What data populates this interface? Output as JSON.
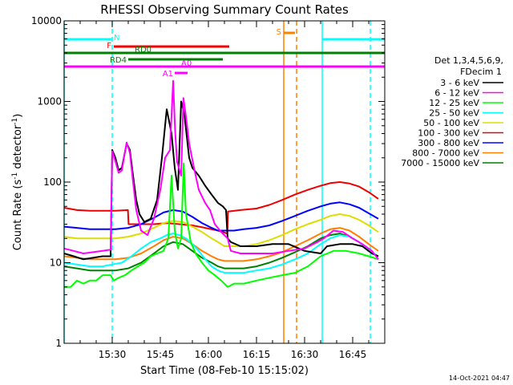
{
  "chart_data": {
    "type": "line",
    "title": "RHESSI Observing Summary Count Rates",
    "xlabel": "Start Time (08-Feb-10 15:15:02)",
    "ylabel": "Count Rate (s⁻¹ detector⁻¹)",
    "ylabel_main": "Count Rate (s",
    "ylabel_sup1": "-1",
    "ylabel_mid": " detector",
    "ylabel_sup2": "-1",
    "ylabel_end": ")",
    "y_scale": "log",
    "ylim": [
      1,
      10000
    ],
    "xlim_minutes": [
      0,
      100
    ],
    "x_ticks": [
      {
        "minute": 15,
        "label": "15:30"
      },
      {
        "minute": 30,
        "label": "15:45"
      },
      {
        "minute": 45,
        "label": "16:00"
      },
      {
        "minute": 60,
        "label": "16:15"
      },
      {
        "minute": 75,
        "label": "16:30"
      },
      {
        "minute": 90,
        "label": "16:45"
      }
    ],
    "y_ticks": [
      {
        "value": 1,
        "label": "1"
      },
      {
        "value": 10,
        "label": "10"
      },
      {
        "value": 100,
        "label": "100"
      },
      {
        "value": 1000,
        "label": "1000"
      },
      {
        "value": 10000,
        "label": "10000"
      }
    ],
    "legend": {
      "position": "right",
      "header": [
        "Det 1,3,4,5,6,9,",
        "FDecim 1"
      ],
      "entries": [
        {
          "label": "3 - 6 keV",
          "color": "#000000"
        },
        {
          "label": "6 - 12 keV",
          "color": "#ff00ff"
        },
        {
          "label": "12 - 25 keV",
          "color": "#00ff00"
        },
        {
          "label": "25 - 50 keV",
          "color": "#00ffff"
        },
        {
          "label": "50 - 100 keV",
          "color": "#dddd00"
        },
        {
          "label": "100 - 300 keV",
          "color": "#ee0000"
        },
        {
          "label": "300 - 800 keV",
          "color": "#0000ff"
        },
        {
          "label": "800 - 7000 keV",
          "color": "#ff8000"
        },
        {
          "label": "7000 - 15000 keV",
          "color": "#008000"
        }
      ]
    },
    "flag_bars": [
      {
        "label": "N",
        "color": "#00ffff",
        "segments": [
          [
            0,
            15
          ],
          [
            80.5,
            100
          ]
        ]
      },
      {
        "label": "S",
        "color": "#ff8000",
        "segments": [
          [
            68.5,
            72
          ]
        ]
      },
      {
        "label": "F",
        "color": "#ff0000",
        "segments": [
          [
            15.5,
            51.5
          ]
        ]
      },
      {
        "label": "RD0",
        "color": "#008000",
        "segments": [
          [
            0,
            100
          ]
        ]
      },
      {
        "label": "RD4",
        "color": "#008000",
        "segments": [
          [
            20,
            49.5
          ]
        ]
      },
      {
        "label": "A0",
        "color": "#ff00ff",
        "segments": [
          [
            0,
            100
          ]
        ]
      },
      {
        "label": "A1",
        "color": "#ff00ff",
        "segments": [
          [
            34.5,
            38.5
          ]
        ]
      }
    ],
    "vertical_markers": [
      {
        "minute": 0,
        "color": "#00ffff",
        "style": "solid"
      },
      {
        "minute": 15,
        "color": "#00ffff",
        "style": "dashed"
      },
      {
        "minute": 68.5,
        "color": "#ff8000",
        "style": "solid"
      },
      {
        "minute": 72.5,
        "color": "#ff8000",
        "style": "dashed"
      },
      {
        "minute": 80.5,
        "color": "#00ffff",
        "style": "solid"
      },
      {
        "minute": 95.5,
        "color": "#00ffff",
        "style": "dashed"
      }
    ],
    "series": [
      {
        "name": "3 - 6 keV",
        "color": "#000000",
        "x": [
          0,
          3,
          6,
          9,
          12,
          14.5,
          15,
          16,
          17,
          18,
          19.5,
          20.5,
          21.5,
          22.5,
          23.5,
          25,
          27,
          29,
          30.5,
          32,
          33.5,
          34.5,
          35.5,
          36.5,
          37.5,
          38.5,
          39,
          40,
          42,
          44,
          46,
          48,
          49.5,
          50.5,
          51,
          52,
          55,
          60,
          65,
          70,
          75,
          80,
          82,
          86,
          90,
          93,
          96,
          98
        ],
        "y": [
          13,
          12,
          11,
          11.5,
          12,
          12,
          250,
          200,
          140,
          150,
          300,
          250,
          120,
          60,
          40,
          32,
          35,
          60,
          200,
          800,
          400,
          150,
          80,
          1000,
          700,
          300,
          200,
          150,
          120,
          90,
          70,
          55,
          50,
          45,
          20,
          18,
          16,
          16,
          17,
          17,
          14,
          13,
          16,
          17,
          17,
          16,
          13,
          12
        ]
      },
      {
        "name": "6 - 12 keV",
        "color": "#ff00ff",
        "x": [
          0,
          3,
          6,
          9,
          12,
          14.5,
          15,
          16,
          17,
          18,
          19.5,
          20.5,
          21.5,
          22.5,
          24,
          26,
          28,
          30,
          31.5,
          33,
          34,
          34.6,
          35.2,
          36.5,
          37.2,
          38,
          39,
          40.5,
          42,
          44,
          45.5,
          47,
          49,
          51,
          52,
          55,
          60,
          65,
          70,
          75,
          79,
          81,
          84,
          87,
          90,
          93,
          96,
          98
        ],
        "y": [
          15,
          14,
          13,
          13.5,
          14,
          14.5,
          240,
          180,
          130,
          140,
          310,
          230,
          100,
          45,
          25,
          22,
          35,
          80,
          200,
          250,
          1800,
          450,
          180,
          120,
          1100,
          650,
          300,
          150,
          80,
          55,
          45,
          30,
          24,
          20,
          14,
          13,
          13,
          13,
          14,
          15,
          18,
          20,
          25,
          24,
          20,
          17,
          14,
          11
        ]
      },
      {
        "name": "12 - 25 keV",
        "color": "#00ff00",
        "x": [
          0,
          2,
          4,
          6,
          8,
          10,
          12,
          14.5,
          15.5,
          17,
          19,
          21,
          23,
          25,
          27,
          29,
          31,
          32.5,
          33.5,
          34.5,
          35.5,
          36.5,
          37.3,
          38,
          39.5,
          41,
          43,
          45,
          47,
          49,
          51,
          53,
          56,
          60,
          64,
          68,
          72,
          76,
          80,
          84,
          88,
          92,
          95,
          98
        ],
        "y": [
          5,
          5,
          6,
          5.5,
          6,
          6,
          7,
          7,
          6,
          6.5,
          7,
          8,
          9,
          10,
          12,
          13,
          14,
          20,
          120,
          25,
          15,
          20,
          170,
          40,
          18,
          13,
          10,
          8,
          7,
          6,
          5,
          5.5,
          5.5,
          6,
          6.5,
          7,
          7.5,
          9,
          12,
          14,
          14,
          13,
          12,
          11
        ]
      },
      {
        "name": "25 - 50 keV",
        "color": "#00ffff",
        "x": [
          0,
          4,
          8,
          12,
          15,
          18,
          21,
          24,
          27,
          30,
          32,
          34,
          36,
          38,
          40,
          42,
          44,
          46,
          48,
          50,
          53,
          56,
          60,
          64,
          68,
          72,
          76,
          80,
          83,
          86,
          89,
          92,
          95,
          98
        ],
        "y": [
          10,
          9.5,
          9,
          9,
          9.5,
          10,
          12,
          15,
          18,
          20,
          22,
          23,
          22,
          20,
          17,
          14,
          11,
          9,
          8,
          7.5,
          7.5,
          7.5,
          8,
          8.5,
          9.5,
          11,
          13,
          17,
          20,
          22,
          21,
          18,
          14,
          12
        ]
      },
      {
        "name": "50 - 100 keV",
        "color": "#dddd00",
        "x": [
          0,
          4,
          8,
          12,
          16,
          20,
          24,
          28,
          31,
          34,
          37,
          40,
          43,
          46,
          48,
          50,
          53,
          56,
          60,
          64,
          68,
          72,
          76,
          80,
          83,
          86,
          89,
          92,
          95,
          98
        ],
        "y": [
          21,
          20,
          20,
          20,
          20,
          21,
          23,
          27,
          31,
          33,
          32,
          28,
          24,
          20,
          18,
          16,
          16,
          16,
          17,
          19,
          22,
          26,
          30,
          34,
          38,
          40,
          38,
          34,
          29,
          24
        ]
      },
      {
        "name": "100 - 300 keV",
        "color": "#ee0000",
        "x": [
          0,
          4,
          8,
          12,
          16,
          19.9,
          20.1,
          24,
          28,
          32,
          36,
          40,
          44,
          48,
          50.9,
          51.1,
          55,
          60,
          64,
          68,
          72,
          76,
          80,
          83,
          86,
          89,
          92,
          95,
          98
        ],
        "y": [
          48,
          45,
          44,
          44,
          44,
          45,
          30,
          30,
          30,
          31,
          30,
          29,
          27,
          25,
          23,
          43,
          45,
          47,
          52,
          60,
          70,
          80,
          90,
          97,
          100,
          96,
          88,
          75,
          62
        ]
      },
      {
        "name": "300 - 800 keV",
        "color": "#0000ff",
        "x": [
          0,
          4,
          8,
          12,
          16,
          20,
          24,
          28,
          31,
          34,
          37,
          40,
          43,
          46,
          48,
          50,
          53,
          56,
          60,
          64,
          68,
          72,
          76,
          80,
          83,
          86,
          89,
          92,
          95,
          98
        ],
        "y": [
          28,
          27,
          26,
          26,
          26,
          27,
          30,
          36,
          42,
          45,
          43,
          37,
          31,
          27,
          25,
          25,
          25,
          26,
          27,
          29,
          33,
          38,
          44,
          50,
          54,
          56,
          53,
          48,
          41,
          35
        ]
      },
      {
        "name": "800 - 7000 keV",
        "color": "#ff8000",
        "x": [
          0,
          4,
          8,
          12,
          16,
          20,
          24,
          28,
          31,
          34,
          37,
          40,
          43,
          46,
          48,
          50,
          53,
          56,
          60,
          64,
          68,
          72,
          76,
          80,
          83,
          86,
          89,
          92,
          95,
          98
        ],
        "y": [
          12,
          11.5,
          11,
          11,
          11,
          11.5,
          13,
          16,
          19,
          21,
          20,
          17,
          14,
          12,
          11,
          10.5,
          10.5,
          10.5,
          11,
          12,
          13.5,
          16,
          19,
          23,
          26,
          27,
          25,
          21,
          17,
          14
        ]
      },
      {
        "name": "7000 - 15000 keV",
        "color": "#008000",
        "x": [
          0,
          4,
          8,
          12,
          16,
          20,
          24,
          28,
          31,
          34,
          37,
          40,
          43,
          46,
          48,
          50,
          53,
          56,
          60,
          64,
          68,
          72,
          76,
          80,
          83,
          86,
          89,
          92,
          95,
          98
        ],
        "y": [
          9,
          8.5,
          8,
          8,
          8,
          8.5,
          10,
          13,
          16,
          18,
          17,
          14,
          11.5,
          10,
          9,
          8.5,
          8.5,
          8.5,
          9,
          10,
          11.5,
          13.5,
          16,
          20,
          22,
          23,
          21,
          18,
          14,
          12
        ]
      }
    ]
  },
  "footer": {
    "timestamp": "14-Oct-2021 04:47"
  }
}
